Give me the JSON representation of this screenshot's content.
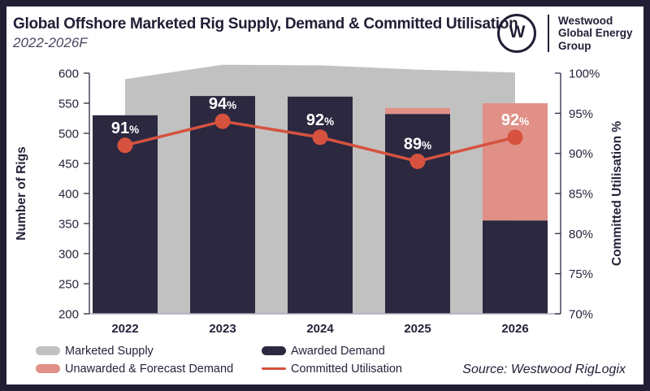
{
  "header": {
    "title": "Global Offshore Marketed Rig Supply, Demand & Committed Utilisation",
    "subtitle": "2022-2026F"
  },
  "logo": {
    "monogram": "W",
    "lines": [
      "Westwood",
      "Global Energy",
      "Group"
    ]
  },
  "chart_data": {
    "type": "combo",
    "categories": [
      "2022",
      "2023",
      "2024",
      "2025",
      "2026"
    ],
    "series": [
      {
        "name": "Marketed Supply",
        "type": "area",
        "axis": "left",
        "color": "#C2C1C1",
        "values": [
          590,
          614,
          613,
          606,
          601
        ]
      },
      {
        "name": "Awarded Demand",
        "type": "bar",
        "axis": "left",
        "color": "#2B2840",
        "values": [
          530,
          562,
          561,
          532,
          355
        ]
      },
      {
        "name": "Unawarded & Forecast Demand",
        "type": "bar-stacked",
        "axis": "left",
        "color": "#E09086",
        "values": [
          0,
          0,
          0,
          10,
          195
        ]
      },
      {
        "name": "Committed Utilisation",
        "type": "line",
        "axis": "right",
        "color": "#D6523E",
        "values": [
          91,
          94,
          92,
          89,
          92
        ],
        "point_labels": [
          "91%",
          "94%",
          "92%",
          "89%",
          "92%"
        ]
      }
    ],
    "left_axis": {
      "label": "Number of Rigs",
      "min": 200,
      "max": 600,
      "step": 50
    },
    "right_axis": {
      "label": "Committed Utilisation %",
      "min": 70,
      "max": 100,
      "step": 5,
      "suffix": "%"
    },
    "legend_position": "bottom",
    "grid": false
  },
  "footer": {
    "source": "Source: Westwood RigLogix"
  }
}
